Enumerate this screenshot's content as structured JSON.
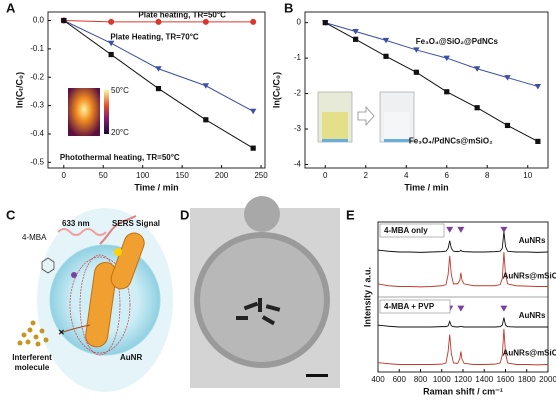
{
  "panel_labels": [
    "A",
    "B",
    "C",
    "D",
    "E"
  ],
  "diagram": {
    "labels": [
      "633 nm",
      "SERS Signal",
      "4-MBA",
      "AuNR",
      "Interferent",
      "molecule"
    ]
  },
  "chart_data": [
    {
      "type": "line",
      "xlabel": "Time / min",
      "ylabel": "ln(Cₜ/C₀)",
      "x": [
        0,
        60,
        120,
        180,
        240
      ],
      "xlim": [
        -20,
        255
      ],
      "ylim": [
        -0.52,
        0.03
      ],
      "xticks": [
        0,
        50,
        100,
        150,
        200,
        250
      ],
      "yticks": [
        {
          "value": 0,
          "label": "0.0"
        },
        -0.1,
        -0.2,
        -0.3,
        -0.4,
        -0.5
      ],
      "annotations": [
        "50°C",
        "20°C"
      ],
      "series": [
        {
          "name": "Plate heating, TR=50°C",
          "color": "#d9372b",
          "marker": "circle",
          "values": [
            0,
            -0.005,
            -0.005,
            -0.005,
            -0.005
          ]
        },
        {
          "name": "Plate Heating, TR=70°C",
          "color": "#3b4fa8",
          "marker": "triangle",
          "values": [
            0,
            -0.08,
            -0.17,
            -0.23,
            -0.32
          ]
        },
        {
          "name": "Photothermal heating, TR=50°C",
          "color": "#111111",
          "marker": "square",
          "values": [
            0,
            -0.12,
            -0.24,
            -0.35,
            -0.45
          ]
        }
      ]
    },
    {
      "type": "line",
      "xlabel": "Time / min",
      "ylabel": "ln(Cₜ/C₀)",
      "x": [
        0,
        1.5,
        3,
        4.5,
        6,
        7.5,
        9,
        10.5
      ],
      "xlim": [
        -1,
        11
      ],
      "ylim": [
        -4.1,
        0.3
      ],
      "xticks": [
        0,
        2,
        4,
        6,
        8,
        10
      ],
      "yticks": [
        0,
        -1,
        -2,
        -3,
        -4
      ],
      "series": [
        {
          "name": "Fe₃O₄@SiO₂@PdNCs",
          "color": "#3b4fa8",
          "marker": "triangle",
          "values": [
            0,
            -0.25,
            -0.5,
            -0.77,
            -1.0,
            -1.3,
            -1.55,
            -1.8
          ]
        },
        {
          "name": "Fe₃O₄/PdNCs@mSiO₂",
          "color": "#111111",
          "marker": "square",
          "values": [
            0,
            -0.47,
            -0.95,
            -1.4,
            -1.95,
            -2.4,
            -2.9,
            -3.35
          ]
        }
      ]
    },
    {
      "type": "line",
      "xlabel": "Raman shift / cm⁻¹",
      "ylabel": "Intensity / a.u.",
      "x": [
        400,
        500,
        600,
        700,
        800,
        900,
        1000,
        1040,
        1060,
        1075,
        1090,
        1110,
        1150,
        1170,
        1180,
        1190,
        1210,
        1300,
        1400,
        1500,
        1550,
        1570,
        1585,
        1600,
        1620,
        1700,
        1800,
        1900,
        2000
      ],
      "xlim": [
        400,
        2000
      ],
      "ylim": [
        0,
        4.0
      ],
      "xticks": [
        400,
        600,
        800,
        1000,
        1200,
        1400,
        1600,
        1800,
        2000
      ],
      "annotations": [
        "4-MBA only",
        "4-MBA + PVP"
      ],
      "peak_markers": [
        1075,
        1180,
        1585
      ],
      "series": [
        {
          "name": "AuNRs",
          "color": "#111111",
          "values": [
            3.25,
            3.22,
            3.2,
            3.2,
            3.19,
            3.2,
            3.21,
            3.22,
            3.3,
            3.5,
            3.3,
            3.22,
            3.21,
            3.22,
            3.25,
            3.22,
            3.21,
            3.2,
            3.2,
            3.21,
            3.22,
            3.3,
            3.75,
            3.35,
            3.22,
            3.2,
            3.2,
            3.19,
            3.2
          ]
        },
        {
          "name": "AuNRs@mSiO₂",
          "color": "#c0392b",
          "values": [
            2.35,
            2.3,
            2.28,
            2.28,
            2.27,
            2.28,
            2.3,
            2.33,
            2.6,
            3.1,
            2.6,
            2.35,
            2.35,
            2.45,
            2.65,
            2.45,
            2.35,
            2.3,
            2.3,
            2.3,
            2.33,
            2.5,
            3.2,
            2.6,
            2.35,
            2.3,
            2.29,
            2.28,
            2.28
          ]
        },
        {
          "name": "AuNRs",
          "color": "#111111",
          "values": [
            1.25,
            1.22,
            1.2,
            1.2,
            1.2,
            1.2,
            1.21,
            1.21,
            1.23,
            1.35,
            1.23,
            1.21,
            1.2,
            1.21,
            1.22,
            1.21,
            1.2,
            1.2,
            1.2,
            1.2,
            1.21,
            1.25,
            1.45,
            1.25,
            1.21,
            1.2,
            1.2,
            1.2,
            1.2
          ]
        },
        {
          "name": "AuNRs@mSiO₂",
          "color": "#c0392b",
          "values": [
            0.25,
            0.22,
            0.2,
            0.2,
            0.2,
            0.2,
            0.21,
            0.24,
            0.55,
            1.0,
            0.5,
            0.24,
            0.23,
            0.35,
            0.55,
            0.35,
            0.23,
            0.2,
            0.2,
            0.21,
            0.24,
            0.45,
            1.15,
            0.5,
            0.24,
            0.2,
            0.2,
            0.19,
            0.2
          ]
        }
      ]
    }
  ]
}
